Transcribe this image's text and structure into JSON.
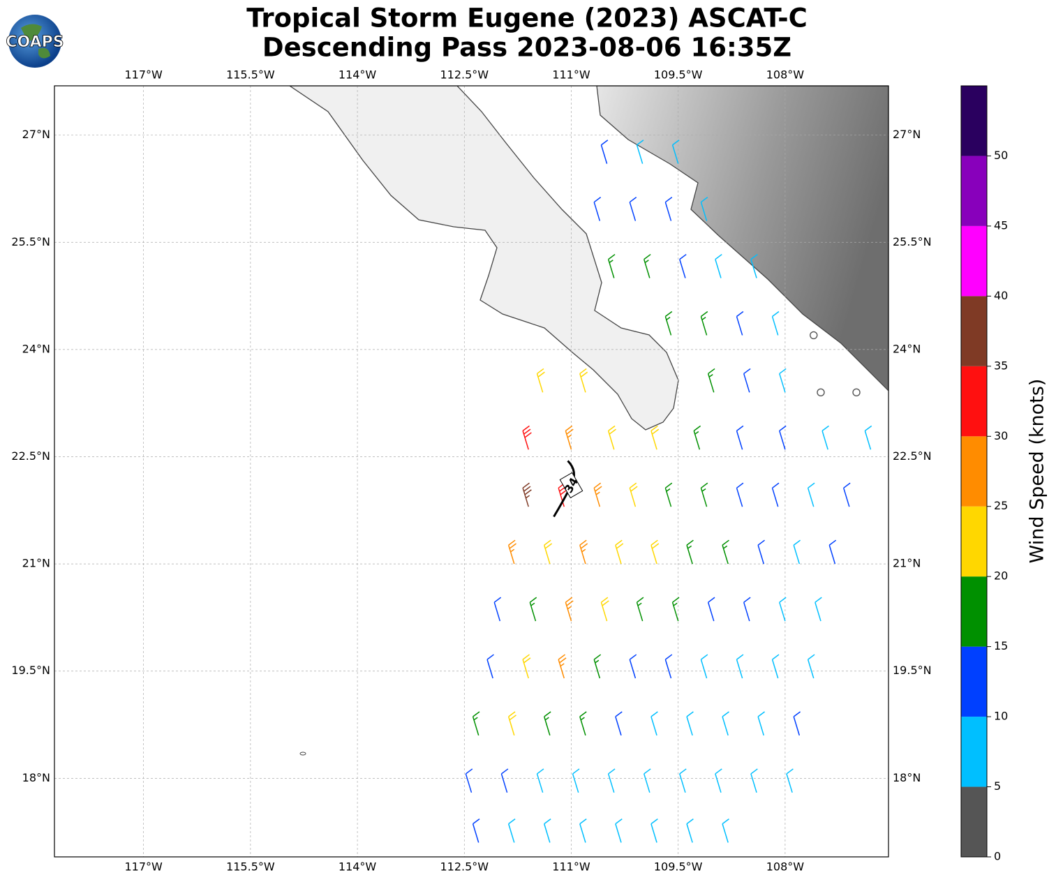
{
  "map": {
    "title": "Tropical Storm Eugene (2023) ASCAT-C",
    "subtitle": "Descending Pass 2023-08-06 16:35Z",
    "logo": "COAPS",
    "xlim": [
      -118.25,
      -106.55
    ],
    "ylim": [
      16.9,
      27.69
    ],
    "xticks": [
      {
        "value": -117,
        "label": "117°W"
      },
      {
        "value": -115.5,
        "label": "115.5°W"
      },
      {
        "value": -114,
        "label": "114°W"
      },
      {
        "value": -112.5,
        "label": "112.5°W"
      },
      {
        "value": -111,
        "label": "111°W"
      },
      {
        "value": -109.5,
        "label": "109.5°W"
      },
      {
        "value": -108,
        "label": "108°W"
      }
    ],
    "yticks": [
      {
        "value": 27,
        "label": "27°N"
      },
      {
        "value": 25.5,
        "label": "25.5°N"
      },
      {
        "value": 24,
        "label": "24°N"
      },
      {
        "value": 22.5,
        "label": "22.5°N"
      },
      {
        "value": 21,
        "label": "21°N"
      },
      {
        "value": 19.5,
        "label": "19.5°N"
      },
      {
        "value": 18,
        "label": "18°N"
      }
    ],
    "grid": true,
    "annotation": {
      "text": "34",
      "lon": -111.0,
      "lat": 22.1
    },
    "colorbar": {
      "label": "Wind Speed (knots)",
      "bounds": [
        0,
        5,
        10,
        15,
        20,
        25,
        30,
        35,
        40,
        45,
        50,
        55
      ],
      "colors": [
        "#555555",
        "#00bfff",
        "#0040ff",
        "#009000",
        "#ffd700",
        "#ff8c00",
        "#ff1010",
        "#7f3a25",
        "#ff00ff",
        "#8800bb",
        "#2a005f"
      ],
      "ticks": [
        0,
        5,
        10,
        15,
        20,
        25,
        30,
        35,
        40,
        45,
        50
      ]
    },
    "barbs": [
      [
        -110.5,
        26.6,
        12
      ],
      [
        -110.0,
        26.6,
        8
      ],
      [
        -109.5,
        26.6,
        8
      ],
      [
        -110.6,
        25.8,
        12
      ],
      [
        -110.1,
        25.8,
        12
      ],
      [
        -109.6,
        25.8,
        12
      ],
      [
        -109.1,
        25.8,
        8
      ],
      [
        -110.4,
        25.0,
        17
      ],
      [
        -109.9,
        25.0,
        17
      ],
      [
        -109.4,
        25.0,
        12
      ],
      [
        -108.9,
        25.0,
        8
      ],
      [
        -108.4,
        25.0,
        8
      ],
      [
        -109.6,
        24.2,
        17
      ],
      [
        -109.1,
        24.2,
        17
      ],
      [
        -108.6,
        24.2,
        12
      ],
      [
        -108.1,
        24.2,
        8
      ],
      [
        -107.6,
        24.2,
        3
      ],
      [
        -111.4,
        23.4,
        22
      ],
      [
        -110.8,
        23.4,
        22
      ],
      [
        -109.0,
        23.4,
        17
      ],
      [
        -108.5,
        23.4,
        12
      ],
      [
        -108.0,
        23.4,
        8
      ],
      [
        -107.5,
        23.4,
        3
      ],
      [
        -107.0,
        23.4,
        3
      ],
      [
        -111.6,
        22.6,
        32
      ],
      [
        -111.0,
        22.6,
        27
      ],
      [
        -110.4,
        22.6,
        22
      ],
      [
        -109.8,
        22.6,
        22
      ],
      [
        -109.2,
        22.6,
        17
      ],
      [
        -108.6,
        22.6,
        12
      ],
      [
        -108.0,
        22.6,
        12
      ],
      [
        -107.4,
        22.6,
        8
      ],
      [
        -106.8,
        22.6,
        8
      ],
      [
        -111.6,
        21.8,
        37
      ],
      [
        -111.1,
        21.8,
        32
      ],
      [
        -110.6,
        21.8,
        27
      ],
      [
        -110.1,
        21.8,
        22
      ],
      [
        -109.6,
        21.8,
        17
      ],
      [
        -109.1,
        21.8,
        17
      ],
      [
        -108.6,
        21.8,
        12
      ],
      [
        -108.1,
        21.8,
        12
      ],
      [
        -107.6,
        21.8,
        8
      ],
      [
        -107.1,
        21.8,
        12
      ],
      [
        -111.8,
        21.0,
        27
      ],
      [
        -111.3,
        21.0,
        22
      ],
      [
        -110.8,
        21.0,
        27
      ],
      [
        -110.3,
        21.0,
        22
      ],
      [
        -109.8,
        21.0,
        22
      ],
      [
        -109.3,
        21.0,
        17
      ],
      [
        -108.8,
        21.0,
        17
      ],
      [
        -108.3,
        21.0,
        12
      ],
      [
        -107.8,
        21.0,
        8
      ],
      [
        -107.3,
        21.0,
        12
      ],
      [
        -112.0,
        20.2,
        12
      ],
      [
        -111.5,
        20.2,
        17
      ],
      [
        -111.0,
        20.2,
        27
      ],
      [
        -110.5,
        20.2,
        22
      ],
      [
        -110.0,
        20.2,
        17
      ],
      [
        -109.5,
        20.2,
        17
      ],
      [
        -109.0,
        20.2,
        12
      ],
      [
        -108.5,
        20.2,
        12
      ],
      [
        -108.0,
        20.2,
        8
      ],
      [
        -107.5,
        20.2,
        8
      ],
      [
        -112.1,
        19.4,
        12
      ],
      [
        -111.6,
        19.4,
        22
      ],
      [
        -111.1,
        19.4,
        27
      ],
      [
        -110.6,
        19.4,
        17
      ],
      [
        -110.1,
        19.4,
        12
      ],
      [
        -109.6,
        19.4,
        12
      ],
      [
        -109.1,
        19.4,
        8
      ],
      [
        -108.6,
        19.4,
        8
      ],
      [
        -108.1,
        19.4,
        8
      ],
      [
        -107.6,
        19.4,
        8
      ],
      [
        -112.3,
        18.6,
        17
      ],
      [
        -111.8,
        18.6,
        22
      ],
      [
        -111.3,
        18.6,
        17
      ],
      [
        -110.8,
        18.6,
        17
      ],
      [
        -110.3,
        18.6,
        12
      ],
      [
        -109.8,
        18.6,
        8
      ],
      [
        -109.3,
        18.6,
        8
      ],
      [
        -108.8,
        18.6,
        8
      ],
      [
        -108.3,
        18.6,
        8
      ],
      [
        -107.8,
        18.6,
        12
      ],
      [
        -112.4,
        17.8,
        12
      ],
      [
        -111.9,
        17.8,
        12
      ],
      [
        -111.4,
        17.8,
        8
      ],
      [
        -110.9,
        17.8,
        8
      ],
      [
        -110.4,
        17.8,
        8
      ],
      [
        -109.9,
        17.8,
        8
      ],
      [
        -109.4,
        17.8,
        8
      ],
      [
        -108.9,
        17.8,
        8
      ],
      [
        -108.4,
        17.8,
        8
      ],
      [
        -107.9,
        17.8,
        8
      ],
      [
        -112.3,
        17.1,
        12
      ],
      [
        -111.8,
        17.1,
        8
      ],
      [
        -111.3,
        17.1,
        8
      ],
      [
        -110.8,
        17.1,
        8
      ],
      [
        -110.3,
        17.1,
        8
      ],
      [
        -109.8,
        17.1,
        8
      ],
      [
        -109.3,
        17.1,
        8
      ],
      [
        -108.8,
        17.1,
        8
      ]
    ]
  }
}
